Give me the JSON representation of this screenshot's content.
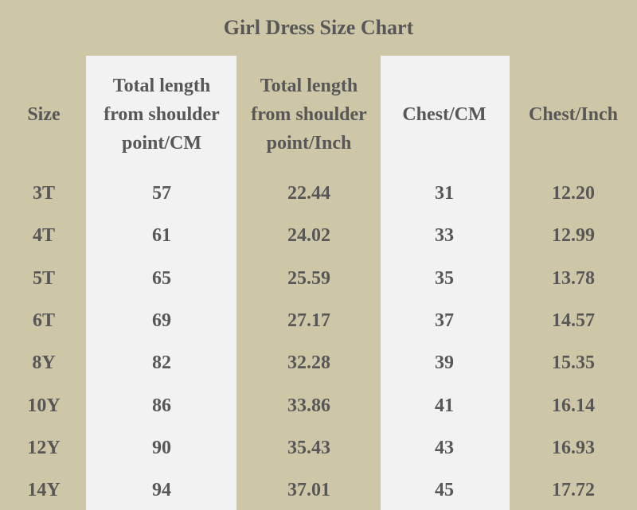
{
  "title": "Girl Dress Size Chart",
  "table": {
    "header": [
      [
        "Size"
      ],
      [
        "Total length",
        "from shoulder",
        "point/CM"
      ],
      [
        "Total length",
        "from shoulder",
        "point/Inch"
      ],
      [
        "Chest/CM"
      ],
      [
        "Chest/Inch"
      ]
    ],
    "rows": [
      [
        "3T",
        "57",
        "22.44",
        "31",
        "12.20"
      ],
      [
        "4T",
        "61",
        "24.02",
        "33",
        "12.99"
      ],
      [
        "5T",
        "65",
        "25.59",
        "35",
        "13.78"
      ],
      [
        "6T",
        "69",
        "27.17",
        "37",
        "14.57"
      ],
      [
        "8Y",
        "82",
        "32.28",
        "39",
        "15.35"
      ],
      [
        "10Y",
        "86",
        "33.86",
        "41",
        "16.14"
      ],
      [
        "12Y",
        "90",
        "35.43",
        "43",
        "16.93"
      ],
      [
        "14Y",
        "94",
        "37.01",
        "45",
        "17.72"
      ]
    ]
  }
}
